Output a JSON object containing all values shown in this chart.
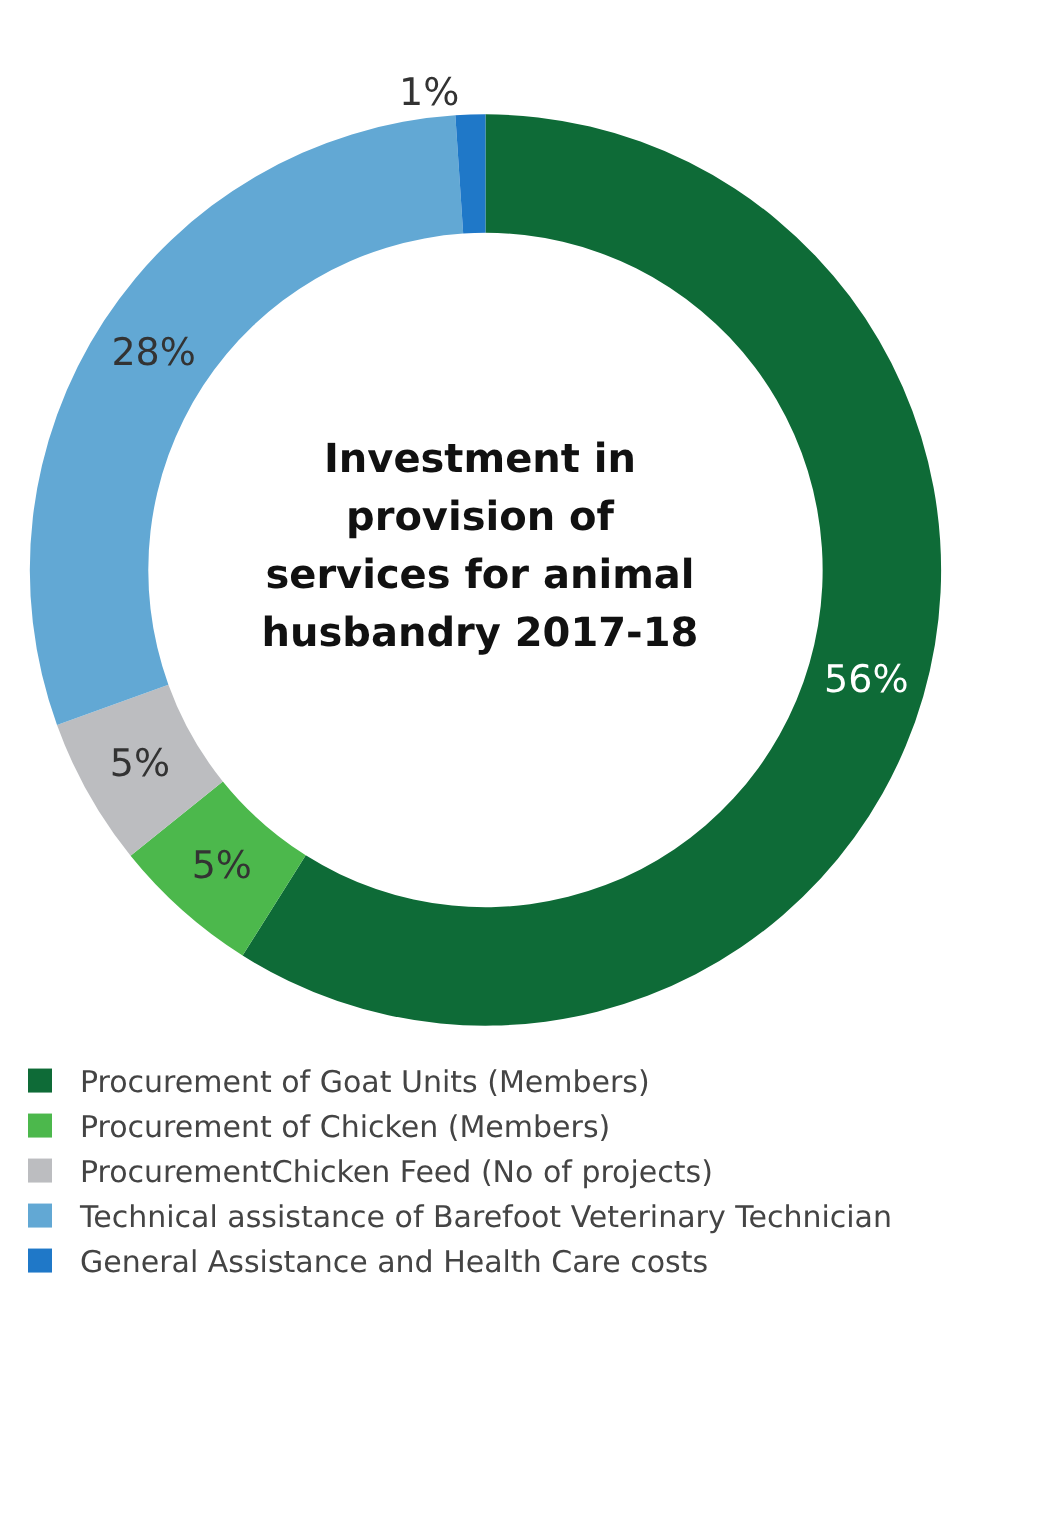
{
  "chart_data": {
    "type": "donut",
    "title": "Investment in provision of services for animal husbandry 2017-18",
    "categories": [
      "Procurement of Goat Units (Members)",
      "Procurement of Chicken (Members)",
      "ProcurementChicken Feed (No of projects)",
      "Technical assistance of Barefoot Veterinary Technician",
      "General Assistance and Health Care costs"
    ],
    "values": [
      56,
      5,
      5,
      28,
      1
    ],
    "colors": [
      "#0e6b37",
      "#4cb84c",
      "#bcbdc0",
      "#62a8d4",
      "#1f78c8"
    ],
    "value_labels": [
      "56%",
      "5%",
      "5%",
      "28%",
      "1%"
    ],
    "legend": "bottom"
  }
}
